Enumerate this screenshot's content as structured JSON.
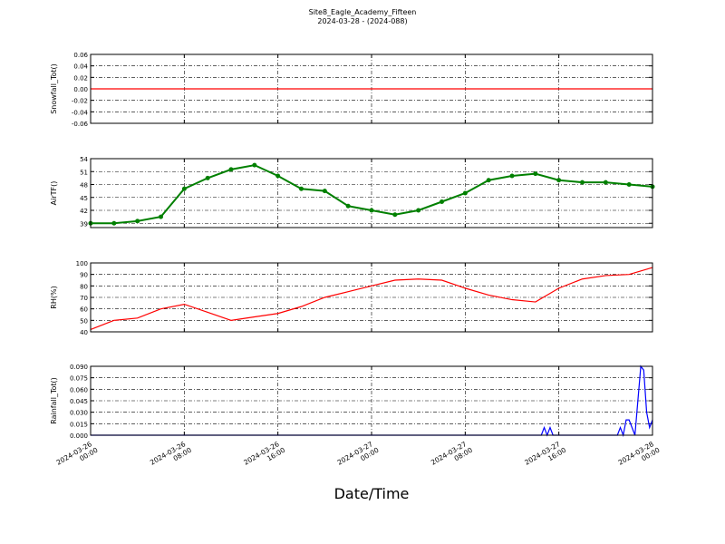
{
  "title": "Site8_Eagle_Academy_Fifteen",
  "subtitle": "2024-03-28 - (2024-088)",
  "xlabel": "Date/Time",
  "chart_data": [
    {
      "type": "line",
      "ylabel": "Snowfall_Tot()",
      "color": "#ff0000",
      "grid": true,
      "xlim": [
        "2024-03-26 00:00",
        "2024-03-28 00:00"
      ],
      "ylim": [
        -0.06,
        0.06
      ],
      "yticks": [
        0.06,
        0.04,
        0.02,
        {
          "value": 0,
          "label": "0.00"
        },
        -0.02,
        -0.04,
        -0.06
      ],
      "x": [
        "2024-03-26 00:00",
        "2024-03-28 00:00"
      ],
      "values": [
        0,
        0
      ]
    },
    {
      "type": "line",
      "ylabel": "AirTF()",
      "color": "#008000",
      "grid": true,
      "marker": true,
      "xlim": [
        "2024-03-26 00:00",
        "2024-03-28 00:00"
      ],
      "ylim": [
        38,
        54
      ],
      "yticks": [
        54,
        51,
        48,
        45,
        42,
        39
      ],
      "x": [
        "2024-03-26 00:00",
        "2024-03-26 02:00",
        "2024-03-26 04:00",
        "2024-03-26 06:00",
        "2024-03-26 08:00",
        "2024-03-26 10:00",
        "2024-03-26 12:00",
        "2024-03-26 14:00",
        "2024-03-26 16:00",
        "2024-03-26 18:00",
        "2024-03-26 20:00",
        "2024-03-26 22:00",
        "2024-03-27 00:00",
        "2024-03-27 02:00",
        "2024-03-27 04:00",
        "2024-03-27 06:00",
        "2024-03-27 08:00",
        "2024-03-27 10:00",
        "2024-03-27 12:00",
        "2024-03-27 14:00",
        "2024-03-27 16:00",
        "2024-03-27 18:00",
        "2024-03-27 20:00",
        "2024-03-27 22:00",
        "2024-03-28 00:00"
      ],
      "values": [
        39,
        39,
        39.5,
        40.5,
        47,
        49.5,
        51.5,
        52.5,
        50,
        47,
        46.5,
        43,
        42,
        41,
        42,
        44,
        46,
        49,
        50,
        50.5,
        49,
        48.5,
        48.5,
        48,
        47.5
      ]
    },
    {
      "type": "line",
      "ylabel": "RH(%)",
      "color": "#ff0000",
      "grid": true,
      "xlim": [
        "2024-03-26 00:00",
        "2024-03-28 00:00"
      ],
      "ylim": [
        40,
        100
      ],
      "yticks": [
        100,
        90,
        80,
        70,
        60,
        50,
        40
      ],
      "x": [
        "2024-03-26 00:00",
        "2024-03-26 02:00",
        "2024-03-26 04:00",
        "2024-03-26 06:00",
        "2024-03-26 08:00",
        "2024-03-26 10:00",
        "2024-03-26 12:00",
        "2024-03-26 14:00",
        "2024-03-26 16:00",
        "2024-03-26 18:00",
        "2024-03-26 20:00",
        "2024-03-26 22:00",
        "2024-03-27 00:00",
        "2024-03-27 02:00",
        "2024-03-27 04:00",
        "2024-03-27 06:00",
        "2024-03-27 08:00",
        "2024-03-27 10:00",
        "2024-03-27 12:00",
        "2024-03-27 14:00",
        "2024-03-27 16:00",
        "2024-03-27 18:00",
        "2024-03-27 20:00",
        "2024-03-27 22:00",
        "2024-03-28 00:00"
      ],
      "values": [
        42,
        50,
        52,
        60,
        64,
        57,
        50,
        53,
        56,
        62,
        70,
        75,
        80,
        85,
        86,
        85,
        78,
        72,
        68,
        66,
        78,
        86,
        89,
        90,
        96
      ]
    },
    {
      "type": "line",
      "ylabel": "Rainfall_Tot()",
      "color": "#0000ff",
      "grid": true,
      "xlim": [
        "2024-03-26 00:00",
        "2024-03-28 00:00"
      ],
      "ylim": [
        0,
        0.09
      ],
      "yticks": [
        {
          "value": 0.09,
          "label": "0.090"
        },
        0.075,
        {
          "value": 0.06,
          "label": "0.060"
        },
        0.045,
        {
          "value": 0.03,
          "label": "0.030"
        },
        0.015,
        {
          "value": 0,
          "label": "0.000"
        }
      ],
      "xticks": [
        "2024-03-26 00:00",
        "2024-03-26 08:00",
        "2024-03-26 16:00",
        "2024-03-27 00:00",
        "2024-03-27 08:00",
        "2024-03-27 16:00",
        "2024-03-28 00:00"
      ],
      "x": [
        "2024-03-26 00:00",
        "2024-03-27 14:30",
        "2024-03-27 14:45",
        "2024-03-27 15:00",
        "2024-03-27 15:15",
        "2024-03-27 15:30",
        "2024-03-27 21:00",
        "2024-03-27 21:15",
        "2024-03-27 21:30",
        "2024-03-27 21:45",
        "2024-03-27 22:00",
        "2024-03-27 22:30",
        "2024-03-27 23:00",
        "2024-03-27 23:15",
        "2024-03-27 23:30",
        "2024-03-27 23:45",
        "2024-03-28 00:00"
      ],
      "values": [
        0,
        0,
        0.01,
        0,
        0.01,
        0,
        0,
        0.01,
        0,
        0.02,
        0.02,
        0,
        0.09,
        0.085,
        0.03,
        0.01,
        0.02
      ]
    }
  ]
}
